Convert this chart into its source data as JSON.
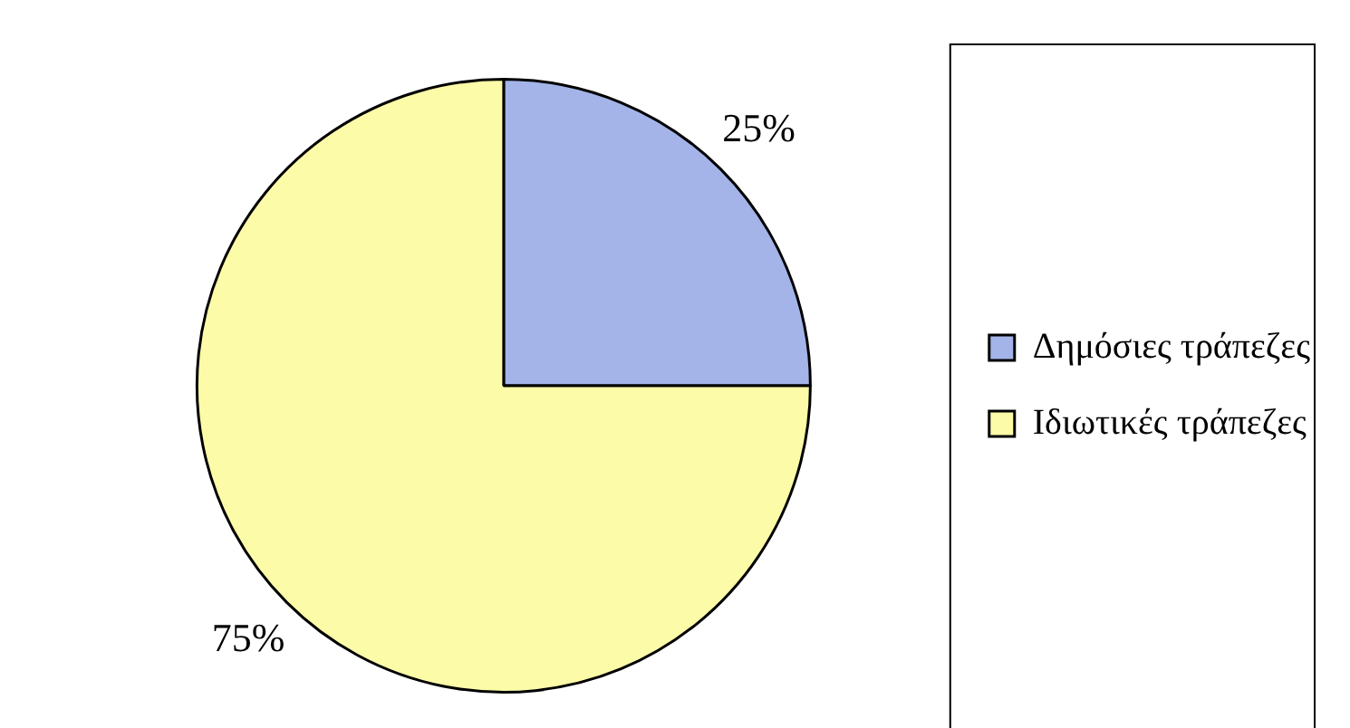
{
  "chart_data": {
    "type": "pie",
    "categories": [
      "Δημόσιες τράπεζες",
      "Ιδιωτικές τράπεζες"
    ],
    "values": [
      25,
      75
    ],
    "colors": [
      "#a4b4e8",
      "#fbfba8"
    ],
    "value_labels": [
      "25%",
      "75%"
    ],
    "legend": "right"
  }
}
